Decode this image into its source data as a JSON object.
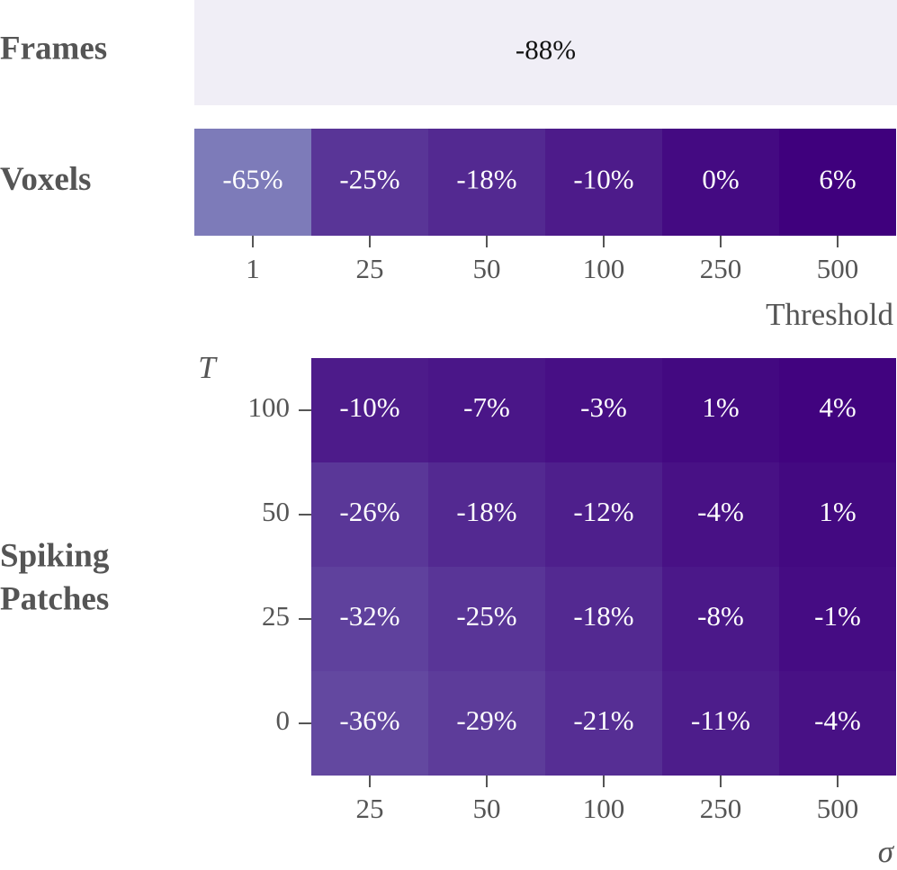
{
  "chart_data": {
    "type": "heatmap",
    "unit": "%",
    "color_scale": {
      "low": "#f0eef6",
      "mid": "#7b79b8",
      "high": "#3f007d",
      "range": [
        -88,
        6
      ]
    },
    "panels": [
      {
        "name": "Frames",
        "label_lines": [
          "Frames"
        ],
        "values": [
          [
            -88
          ]
        ]
      },
      {
        "name": "Voxels",
        "label_lines": [
          "Voxels"
        ],
        "x_ticks": [
          "1",
          "25",
          "50",
          "100",
          "250",
          "500"
        ],
        "xlabel": "Threshold",
        "values": [
          [
            -65,
            -25,
            -18,
            -10,
            0,
            6
          ]
        ]
      },
      {
        "name": "Spiking Patches",
        "label_lines": [
          "Spiking",
          "Patches"
        ],
        "x_ticks": [
          "25",
          "50",
          "100",
          "250",
          "500"
        ],
        "xlabel": "σ",
        "y_ticks": [
          "100",
          "50",
          "25",
          "0"
        ],
        "ylabel": "T",
        "values": [
          [
            -10,
            -7,
            -3,
            1,
            4
          ],
          [
            -26,
            -18,
            -12,
            -4,
            1
          ],
          [
            -32,
            -25,
            -18,
            -8,
            -1
          ],
          [
            -36,
            -29,
            -21,
            -11,
            -4
          ]
        ]
      }
    ]
  }
}
